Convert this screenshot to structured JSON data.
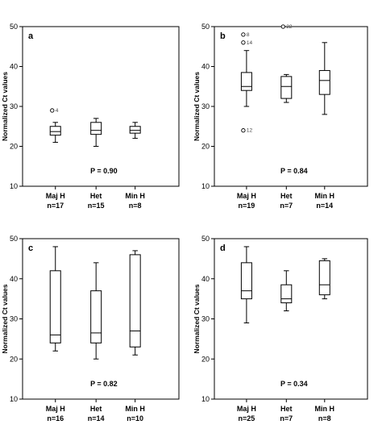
{
  "chart_data": [
    {
      "type": "box",
      "panel_label": "a",
      "ylabel": "Normalized Ct values",
      "ylim": [
        10,
        50
      ],
      "yticks": [
        10,
        20,
        30,
        40,
        50
      ],
      "p_value": "P = 0.90",
      "categories": [
        "Maj H",
        "Het",
        "Min H"
      ],
      "n_labels": [
        "n=17",
        "n=15",
        "n=8"
      ],
      "boxes": [
        {
          "min": 21,
          "q1": 22.8,
          "median": 23.7,
          "q3": 25,
          "max": 26,
          "outliers": [
            {
              "value": 29,
              "label": "4"
            }
          ]
        },
        {
          "min": 20,
          "q1": 23,
          "median": 24,
          "q3": 26,
          "max": 27,
          "outliers": []
        },
        {
          "min": 22,
          "q1": 23.3,
          "median": 24,
          "q3": 25,
          "max": 26,
          "outliers": []
        }
      ]
    },
    {
      "type": "box",
      "panel_label": "b",
      "ylabel": "Normalized Ct values",
      "ylim": [
        10,
        50
      ],
      "yticks": [
        10,
        20,
        30,
        40,
        50
      ],
      "p_value": "P = 0.84",
      "categories": [
        "Maj H",
        "Het",
        "Min H"
      ],
      "n_labels": [
        "n=19",
        "n=7",
        "n=14"
      ],
      "boxes": [
        {
          "min": 30,
          "q1": 34,
          "median": 35,
          "q3": 38.5,
          "max": 44,
          "outliers": [
            {
              "value": 48,
              "label": "8"
            },
            {
              "value": 46,
              "label": "14"
            },
            {
              "value": 24,
              "label": "12"
            }
          ]
        },
        {
          "min": 31,
          "q1": 32,
          "median": 35,
          "q3": 37.5,
          "max": 38,
          "outliers": [
            {
              "value": 50,
              "label": "22"
            }
          ]
        },
        {
          "min": 28,
          "q1": 33,
          "median": 36.5,
          "q3": 39,
          "max": 46,
          "outliers": []
        }
      ]
    },
    {
      "type": "box",
      "panel_label": "c",
      "ylabel": "Normalized Ct values",
      "ylim": [
        10,
        50
      ],
      "yticks": [
        10,
        20,
        30,
        40,
        50
      ],
      "p_value": "P = 0.82",
      "categories": [
        "Maj H",
        "Het",
        "Min H"
      ],
      "n_labels": [
        "n=16",
        "n=14",
        "n=10"
      ],
      "boxes": [
        {
          "min": 22,
          "q1": 24,
          "median": 26,
          "q3": 42,
          "max": 48,
          "outliers": []
        },
        {
          "min": 20,
          "q1": 24,
          "median": 26.5,
          "q3": 37,
          "max": 44,
          "outliers": []
        },
        {
          "min": 21,
          "q1": 23,
          "median": 27,
          "q3": 46,
          "max": 47,
          "outliers": []
        }
      ]
    },
    {
      "type": "box",
      "panel_label": "d",
      "ylabel": "Normalized Ct values",
      "ylim": [
        10,
        50
      ],
      "yticks": [
        10,
        20,
        30,
        40,
        50
      ],
      "p_value": "P = 0.34",
      "categories": [
        "Maj H",
        "Het",
        "Min H"
      ],
      "n_labels": [
        "n=25",
        "n=7",
        "n=8"
      ],
      "boxes": [
        {
          "min": 29,
          "q1": 35,
          "median": 37,
          "q3": 44,
          "max": 48,
          "outliers": []
        },
        {
          "min": 32,
          "q1": 34,
          "median": 35,
          "q3": 38.5,
          "max": 42,
          "outliers": []
        },
        {
          "min": 35,
          "q1": 36,
          "median": 38.5,
          "q3": 44.5,
          "max": 45,
          "outliers": []
        }
      ]
    }
  ]
}
